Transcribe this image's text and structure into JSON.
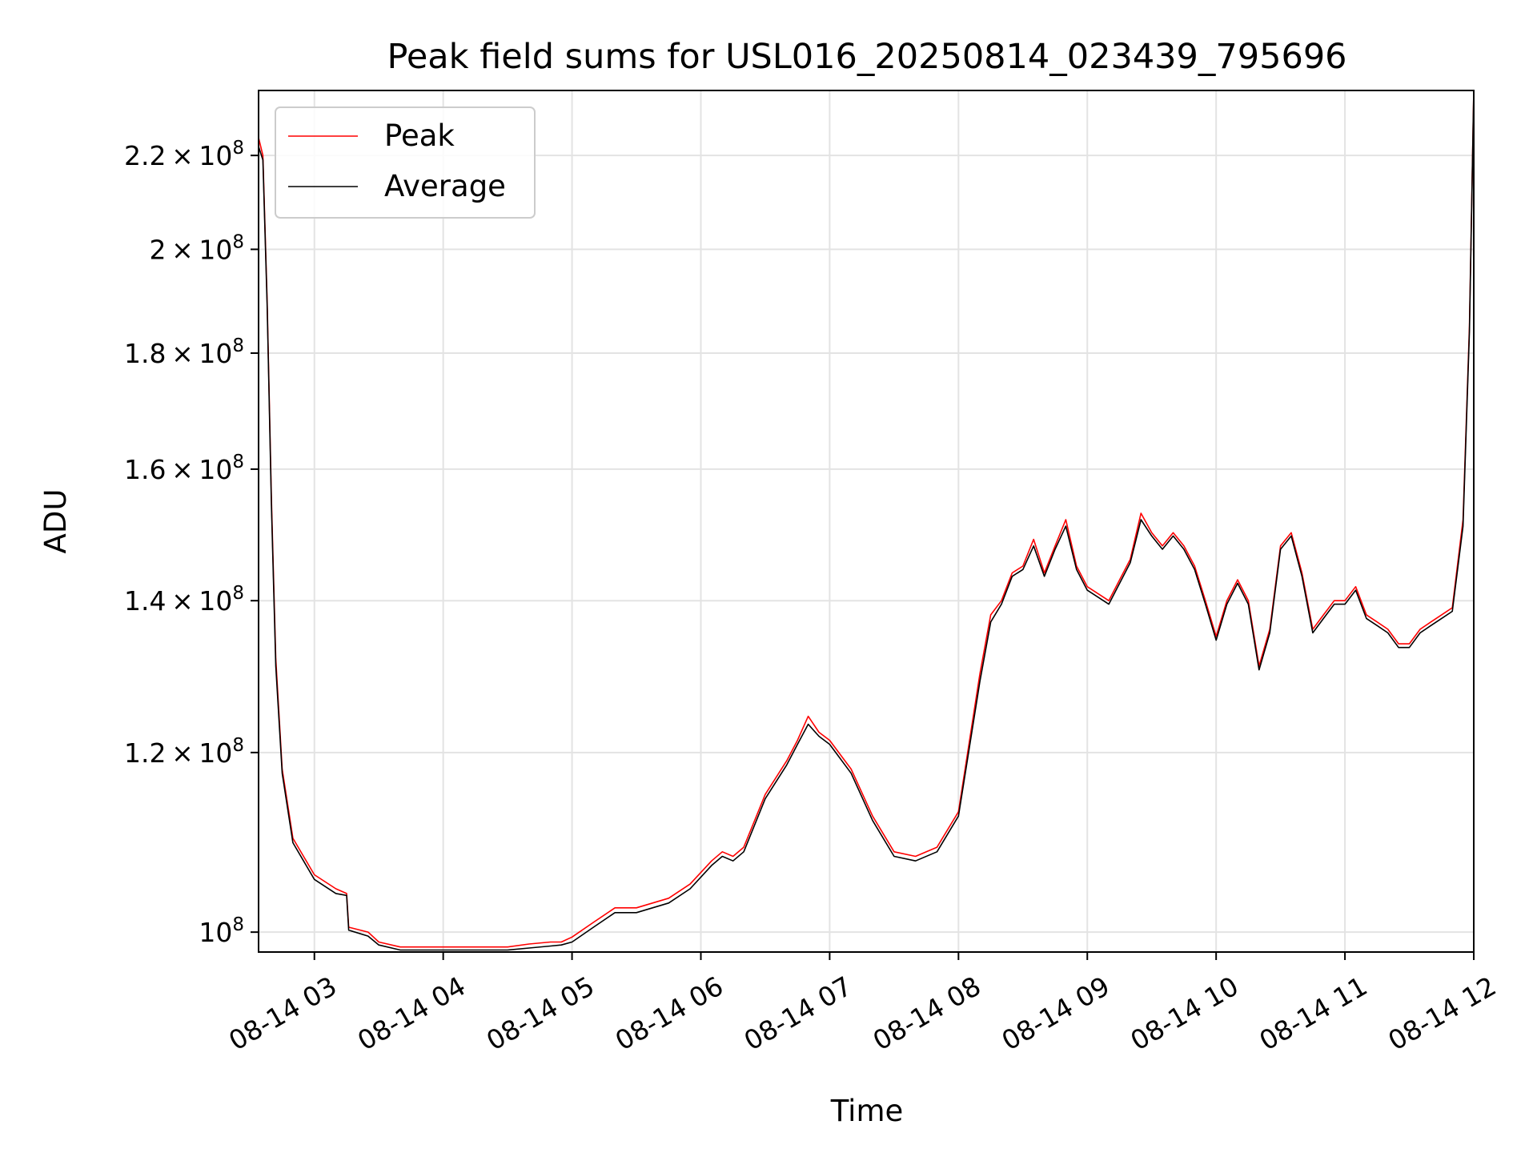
{
  "chart_data": {
    "type": "line",
    "title": "Peak field sums for USL016_20250814_023439_795696",
    "xlabel": "Time",
    "ylabel": "ADU",
    "y_scale": "log",
    "grid": true,
    "legend_position": "top-left",
    "xlim": [
      "08-14 02:34",
      "08-14 12:00"
    ],
    "ylim": [
      98000000.0,
      235000000.0
    ],
    "x_ticks": [
      "08-14 03",
      "08-14 04",
      "08-14 05",
      "08-14 06",
      "08-14 07",
      "08-14 08",
      "08-14 09",
      "08-14 10",
      "08-14 11",
      "08-14 12"
    ],
    "y_ticks": [
      {
        "value": 100000000.0,
        "mantissa": "",
        "exp": "8"
      },
      {
        "value": 120000000.0,
        "mantissa": "1.2",
        "exp": "8"
      },
      {
        "value": 140000000.0,
        "mantissa": "1.4",
        "exp": "8"
      },
      {
        "value": 160000000.0,
        "mantissa": "1.6",
        "exp": "8"
      },
      {
        "value": 180000000.0,
        "mantissa": "1.8",
        "exp": "8"
      },
      {
        "value": 200000000.0,
        "mantissa": "2",
        "exp": "8"
      },
      {
        "value": 220000000.0,
        "mantissa": "2.2",
        "exp": "8"
      }
    ],
    "series": [
      {
        "name": "Peak",
        "color": "#ff0000",
        "x": [
          "02:34",
          "02:36",
          "02:38",
          "02:40",
          "02:42",
          "02:45",
          "02:50",
          "03:00",
          "03:10",
          "03:15",
          "03:16",
          "03:25",
          "03:30",
          "03:40",
          "03:50",
          "04:00",
          "04:10",
          "04:20",
          "04:30",
          "04:40",
          "04:50",
          "04:55",
          "05:00",
          "05:10",
          "05:20",
          "05:30",
          "05:45",
          "05:55",
          "06:05",
          "06:10",
          "06:15",
          "06:20",
          "06:30",
          "06:40",
          "06:45",
          "06:50",
          "06:55",
          "07:00",
          "07:10",
          "07:20",
          "07:30",
          "07:40",
          "07:50",
          "08:00",
          "08:10",
          "08:15",
          "08:20",
          "08:25",
          "08:30",
          "08:35",
          "08:40",
          "08:45",
          "08:50",
          "08:55",
          "09:00",
          "09:10",
          "09:20",
          "09:25",
          "09:30",
          "09:35",
          "09:40",
          "09:45",
          "09:50",
          "09:55",
          "10:00",
          "10:05",
          "10:10",
          "10:15",
          "10:20",
          "10:25",
          "10:30",
          "10:35",
          "10:40",
          "10:45",
          "10:50",
          "10:55",
          "11:00",
          "11:05",
          "11:10",
          "11:15",
          "11:20",
          "11:25",
          "11:30",
          "11:35",
          "11:40",
          "11:45",
          "11:50",
          "11:55",
          "11:58",
          "12:00"
        ],
        "values": [
          224000000.0,
          220000000.0,
          190000000.0,
          155000000.0,
          132000000.0,
          118000000.0,
          110000000.0,
          106000000.0,
          104500000.0,
          104000000.0,
          100500000.0,
          100000000.0,
          99000000.0,
          98500000.0,
          98500000.0,
          98500000.0,
          98500000.0,
          98500000.0,
          98500000.0,
          98800000.0,
          99000000.0,
          99000000.0,
          99500000.0,
          101000000.0,
          102500000.0,
          102500000.0,
          103500000.0,
          105000000.0,
          107500000.0,
          108500000.0,
          108000000.0,
          109000000.0,
          115000000.0,
          119000000.0,
          121500000.0,
          124500000.0,
          122500000.0,
          121500000.0,
          118000000.0,
          112500000.0,
          108500000.0,
          108000000.0,
          109000000.0,
          113000000.0,
          130000000.0,
          138000000.0,
          140000000.0,
          144000000.0,
          145000000.0,
          149000000.0,
          144000000.0,
          148000000.0,
          152000000.0,
          145000000.0,
          142000000.0,
          140000000.0,
          146000000.0,
          153000000.0,
          150000000.0,
          148000000.0,
          150000000.0,
          148000000.0,
          145000000.0,
          140000000.0,
          135000000.0,
          140000000.0,
          143000000.0,
          140000000.0,
          131000000.0,
          136000000.0,
          148000000.0,
          150000000.0,
          144000000.0,
          136000000.0,
          138000000.0,
          140000000.0,
          140000000.0,
          142000000.0,
          138000000.0,
          137000000.0,
          136000000.0,
          134000000.0,
          134000000.0,
          136000000.0,
          137000000.0,
          138000000.0,
          139000000.0,
          152000000.0,
          185000000.0,
          235000000.0
        ]
      },
      {
        "name": "Average",
        "color": "#000000",
        "x": [
          "02:34",
          "02:36",
          "02:38",
          "02:40",
          "02:42",
          "02:45",
          "02:50",
          "03:00",
          "03:10",
          "03:15",
          "03:16",
          "03:25",
          "03:30",
          "03:40",
          "03:50",
          "04:00",
          "04:10",
          "04:20",
          "04:30",
          "04:40",
          "04:50",
          "04:55",
          "05:00",
          "05:10",
          "05:20",
          "05:30",
          "05:45",
          "05:55",
          "06:05",
          "06:10",
          "06:15",
          "06:20",
          "06:30",
          "06:40",
          "06:45",
          "06:50",
          "06:55",
          "07:00",
          "07:10",
          "07:20",
          "07:30",
          "07:40",
          "07:50",
          "08:00",
          "08:10",
          "08:15",
          "08:20",
          "08:25",
          "08:30",
          "08:35",
          "08:40",
          "08:45",
          "08:50",
          "08:55",
          "09:00",
          "09:10",
          "09:20",
          "09:25",
          "09:30",
          "09:35",
          "09:40",
          "09:45",
          "09:50",
          "09:55",
          "10:00",
          "10:05",
          "10:10",
          "10:15",
          "10:20",
          "10:25",
          "10:30",
          "10:35",
          "10:40",
          "10:45",
          "10:50",
          "10:55",
          "11:00",
          "11:05",
          "11:10",
          "11:15",
          "11:20",
          "11:25",
          "11:30",
          "11:35",
          "11:40",
          "11:45",
          "11:50",
          "11:55",
          "11:58",
          "12:00"
        ],
        "values": [
          222000000.0,
          219000000.0,
          189000000.0,
          154000000.0,
          131000000.0,
          117500000.0,
          109500000.0,
          105500000.0,
          104000000.0,
          103800000.0,
          100200000.0,
          99600000.0,
          98700000.0,
          98200000.0,
          98200000.0,
          98200000.0,
          98200000.0,
          98200000.0,
          98200000.0,
          98400000.0,
          98600000.0,
          98700000.0,
          99000000.0,
          100500000.0,
          102000000.0,
          102000000.0,
          103000000.0,
          104500000.0,
          107000000.0,
          108000000.0,
          107500000.0,
          108500000.0,
          114500000.0,
          118500000.0,
          121000000.0,
          123500000.0,
          122000000.0,
          121000000.0,
          117500000.0,
          112000000.0,
          108000000.0,
          107500000.0,
          108500000.0,
          112500000.0,
          129000000.0,
          137000000.0,
          139500000.0,
          143500000.0,
          144500000.0,
          148000000.0,
          143500000.0,
          147500000.0,
          151000000.0,
          144500000.0,
          141500000.0,
          139500000.0,
          145500000.0,
          152000000.0,
          149500000.0,
          147500000.0,
          149500000.0,
          147500000.0,
          144500000.0,
          139500000.0,
          134500000.0,
          139500000.0,
          142500000.0,
          139500000.0,
          130500000.0,
          135500000.0,
          147500000.0,
          149500000.0,
          143500000.0,
          135500000.0,
          137500000.0,
          139500000.0,
          139500000.0,
          141500000.0,
          137500000.0,
          136500000.0,
          135500000.0,
          133500000.0,
          133500000.0,
          135500000.0,
          136500000.0,
          137500000.0,
          138500000.0,
          151000000.0,
          184000000.0,
          235000000.0
        ]
      }
    ]
  }
}
